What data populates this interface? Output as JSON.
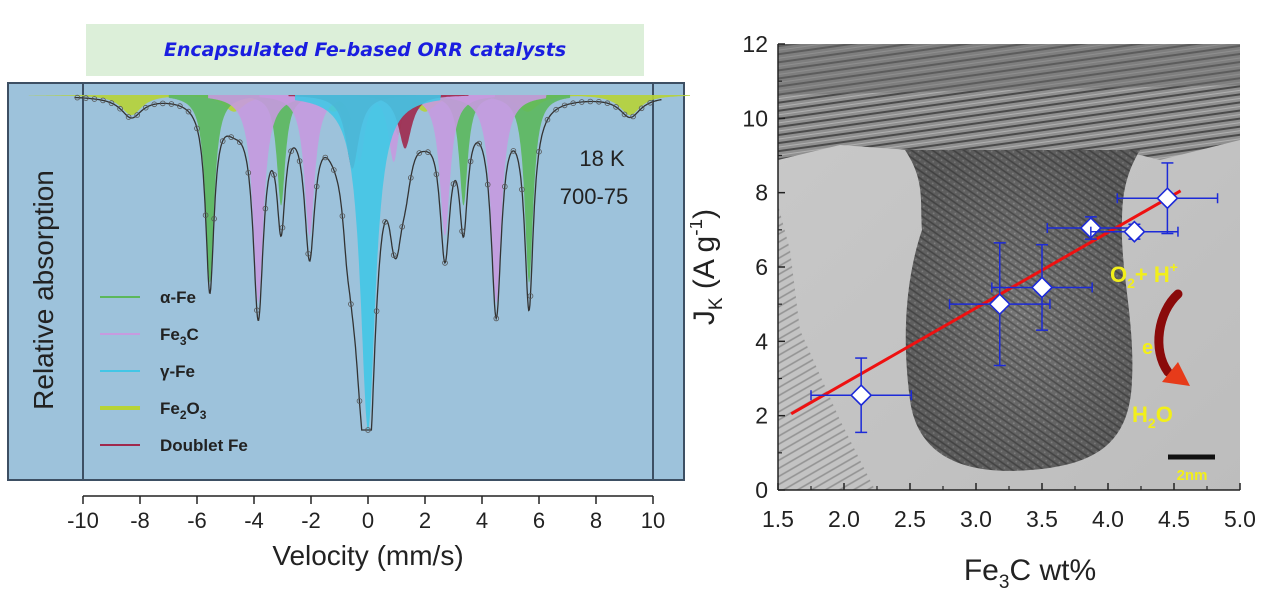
{
  "banner": {
    "text": "Encapsulated Fe-based ORR catalysts"
  },
  "colors": {
    "panel_bg": "#9dc2db",
    "alpha_fe": "#5cb85c",
    "fe3c": "#c79adf",
    "gamma_fe": "#43c6e6",
    "fe2o3": "#b7d336",
    "doublet": "#a0294d",
    "marker_edge": "#1c2ad8",
    "fit_line": "#ee1111",
    "ann_yellow": "#f2ef1a"
  },
  "chart_data": [
    {
      "type": "area",
      "xlabel": "Velocity (mm/s)",
      "ylabel": "Relative absorption",
      "xlim": [
        -10.5,
        10.5
      ],
      "x_ticks": [
        -10,
        -8,
        -6,
        -4,
        -2,
        0,
        2,
        4,
        6,
        8,
        10
      ],
      "annotation": [
        "18 K",
        "700-75"
      ],
      "legend_position": "lower-left",
      "series": [
        {
          "name": "α-Fe",
          "label_main": "α-Fe",
          "sub": "",
          "tail": "",
          "sub2": "",
          "color": "#5cb85c",
          "line_positions": [
            -5.55,
            -3.05,
            -0.75,
            1.05,
            3.35,
            5.65
          ],
          "line_depths": [
            0.56,
            0.33,
            0.12,
            0.12,
            0.33,
            0.56
          ],
          "linewidth": 0.18
        },
        {
          "name": "Fe3C",
          "label_main": "Fe",
          "sub": "3",
          "tail": "C",
          "sub2": "",
          "color": "#c79adf",
          "line_positions": [
            -3.85,
            -2.05,
            -0.3,
            0.9,
            2.7,
            4.5
          ],
          "line_depths": [
            0.62,
            0.42,
            0.2,
            0.2,
            0.42,
            0.62
          ],
          "linewidth": 0.22
        },
        {
          "name": "γ-Fe",
          "label_main": "γ-Fe",
          "sub": "",
          "tail": "",
          "sub2": "",
          "color": "#43c6e6",
          "line_positions": [
            0.0
          ],
          "line_depths": [
            1.0
          ],
          "linewidth": 0.32
        },
        {
          "name": "Fe2O3",
          "label_main": "Fe",
          "sub": "2",
          "tail": "O",
          "sub2": "3",
          "color": "#b7d336",
          "line_positions": [
            -8.3,
            -4.7,
            -1.2,
            2.0,
            5.6,
            9.2
          ],
          "line_depths": [
            0.06,
            0.05,
            0.05,
            0.05,
            0.05,
            0.06
          ],
          "linewidth": 0.45
        },
        {
          "name": "Doublet Fe",
          "label_main": "Doublet Fe",
          "sub": "",
          "tail": "",
          "sub2": "",
          "color": "#a0294d",
          "line_positions": [
            -0.55,
            1.3
          ],
          "line_depths": [
            0.22,
            0.16
          ],
          "linewidth": 0.28
        }
      ]
    },
    {
      "type": "scatter",
      "xlabel_main": "Fe",
      "xlabel_sub": "3",
      "xlabel_tail": "C wt%",
      "ylabel_main": "J",
      "ylabel_sub": "K",
      "ylabel_tail": " (A g",
      "ylabel_sup": "-1",
      "ylabel_end": ")",
      "xlim": [
        1.5,
        5.0
      ],
      "ylim": [
        0,
        12
      ],
      "x_ticks": [
        "1.5",
        "2.0",
        "2.5",
        "3.0",
        "3.5",
        "4.0",
        "4.5",
        "5.0"
      ],
      "y_ticks": [
        "0",
        "2",
        "4",
        "6",
        "8",
        "10",
        "12"
      ],
      "points": [
        {
          "x": 2.13,
          "y": 2.55,
          "xerr": 0.38,
          "yerr": 1.0
        },
        {
          "x": 3.18,
          "y": 5.0,
          "xerr": 0.38,
          "yerr": 1.65
        },
        {
          "x": 3.5,
          "y": 5.45,
          "xerr": 0.38,
          "yerr": 1.15
        },
        {
          "x": 3.87,
          "y": 7.05,
          "xerr": 0.33,
          "yerr": 0.3
        },
        {
          "x": 4.2,
          "y": 6.95,
          "xerr": 0.33,
          "yerr": 0.2
        },
        {
          "x": 4.45,
          "y": 7.85,
          "xerr": 0.38,
          "yerr": 0.95
        }
      ],
      "fit_line": {
        "x": [
          1.6,
          4.55
        ],
        "y": [
          2.05,
          8.05
        ]
      },
      "overlay": {
        "o2_main": "O",
        "o2_sub": "2",
        "o2_tail": "+ H",
        "o2_sup": "+",
        "electron": "e",
        "h2o_main": "H",
        "h2o_sub": "2",
        "h2o_tail": "O",
        "scale_bar": "2nm"
      }
    }
  ]
}
